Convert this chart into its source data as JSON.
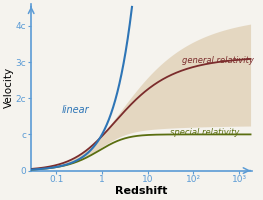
{
  "title": "",
  "xlabel": "Redshift",
  "ylabel": "Velocity",
  "ylim": [
    0,
    4.6
  ],
  "yticks": [
    0,
    1,
    2,
    3,
    4
  ],
  "ytick_labels": [
    "0",
    "c",
    "2c",
    "3c",
    "4c"
  ],
  "xtick_positions": [
    0.1,
    1,
    10,
    100,
    1000
  ],
  "xtick_labels": [
    "0.1",
    "1",
    "10",
    "10²",
    "10³"
  ],
  "bg_color": "#f5f3ee",
  "axes_color": "#5b9bd5",
  "linear_color": "#2e75b6",
  "gr_color": "#7b2c2c",
  "sr_color": "#5a6e10",
  "fill_color": "#d4bc96",
  "fill_alpha": 0.5,
  "linear_label": "linear",
  "gr_label": "general relativity",
  "sr_label": "special relativity",
  "xmin_log": -1.55,
  "xmax_log": 3.28
}
